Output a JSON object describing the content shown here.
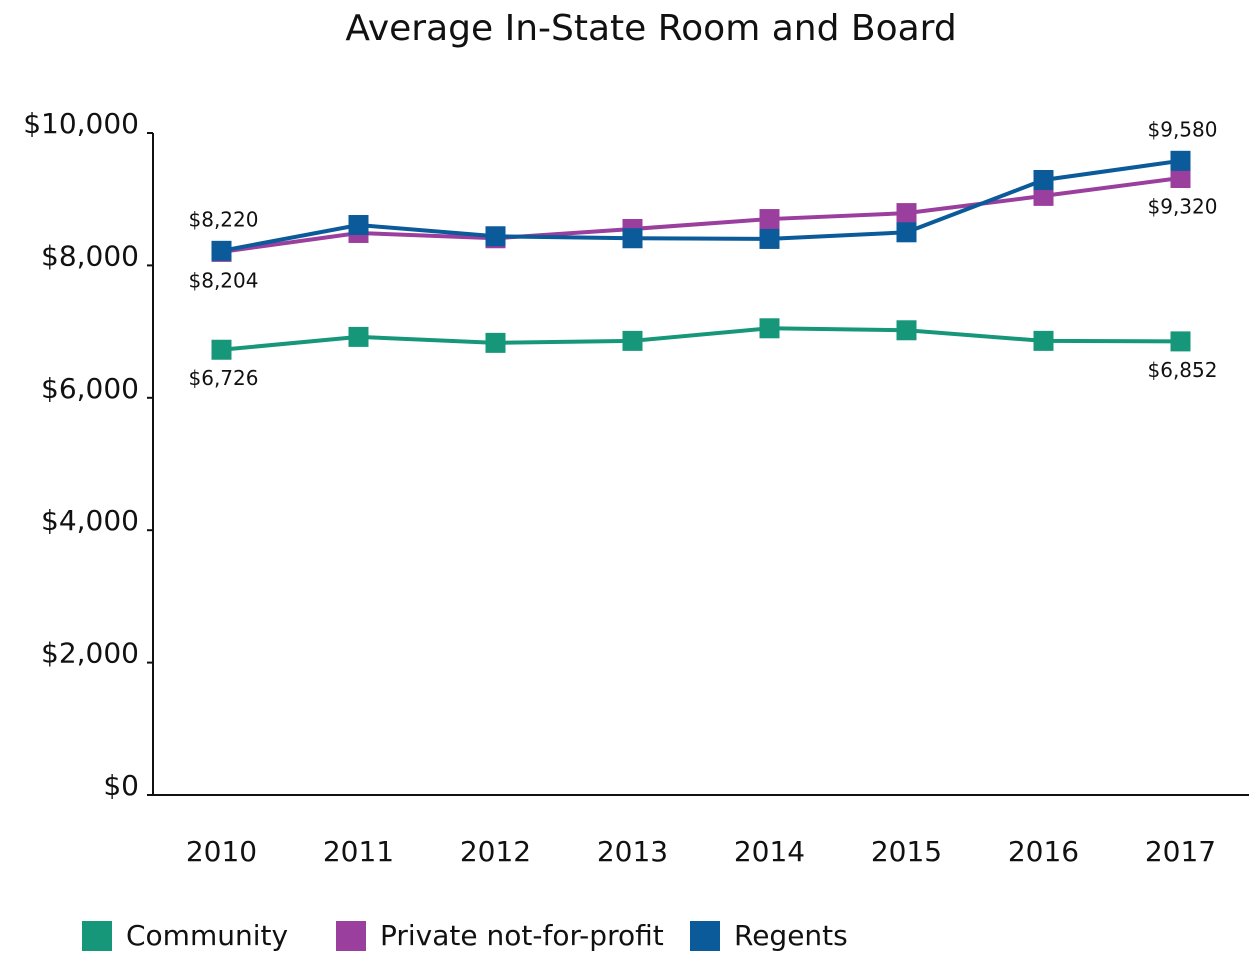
{
  "chart_data": {
    "type": "line",
    "title": "Average In-State Room and Board",
    "categories": [
      "2010",
      "2011",
      "2012",
      "2013",
      "2014",
      "2015",
      "2016",
      "2017"
    ],
    "ylim": [
      0,
      10000
    ],
    "yticks": [
      {
        "value": 0,
        "label": "$0"
      },
      {
        "value": 2000,
        "label": "$2,000"
      },
      {
        "value": 4000,
        "label": "$4,000"
      },
      {
        "value": 6000,
        "label": "$6,000"
      },
      {
        "value": 8000,
        "label": "$8,000"
      },
      {
        "value": 10000,
        "label": "$10,000"
      }
    ],
    "legend": "bottom",
    "series": [
      {
        "name": "Community",
        "color": "#17977a",
        "values": [
          6726,
          6920,
          6830,
          6860,
          7050,
          7020,
          6860,
          6852
        ],
        "value_labels": [
          "$6,726",
          null,
          null,
          null,
          null,
          null,
          null,
          "$6,852"
        ]
      },
      {
        "name": "Private not-for-profit",
        "color": "#9a3f9d",
        "values": [
          8204,
          8490,
          8410,
          8550,
          8700,
          8790,
          9050,
          9320
        ],
        "value_labels": [
          "$8,204",
          null,
          null,
          null,
          null,
          null,
          null,
          "$9,320"
        ]
      },
      {
        "name": "Regents",
        "color": "#0b5a99",
        "values": [
          8220,
          8610,
          8440,
          8410,
          8400,
          8500,
          9290,
          9580
        ],
        "value_labels": [
          "$8,220",
          null,
          null,
          null,
          null,
          null,
          null,
          "$9,580"
        ]
      }
    ]
  }
}
